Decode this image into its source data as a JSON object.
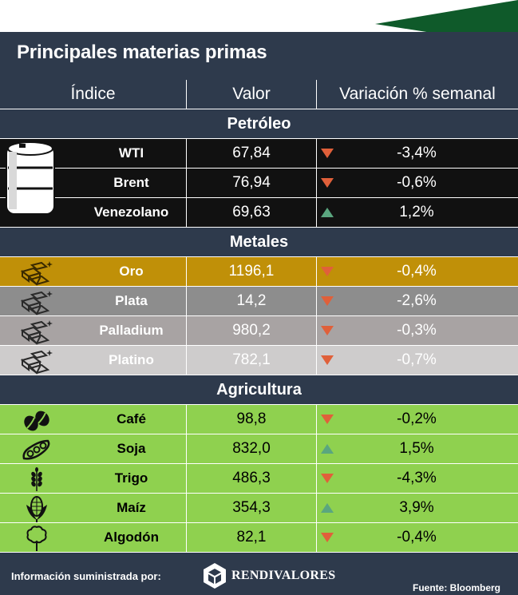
{
  "title": "Principales materias primas",
  "headers": {
    "col1": "Índice",
    "col2": "Valor",
    "col3": "Variación % semanal"
  },
  "sections": {
    "petroleo": "Petróleo",
    "metales": "Metales",
    "agricultura": "Agricultura"
  },
  "petroleo_rows": [
    {
      "name": "WTI",
      "value": "67,84",
      "change": "-3,4%",
      "direction": "down"
    },
    {
      "name": "Brent",
      "value": "76,94",
      "change": "-0,6%",
      "direction": "down"
    },
    {
      "name": "Venezolano",
      "value": "69,63",
      "change": "1,2%",
      "direction": "up"
    }
  ],
  "metales_rows": [
    {
      "name": "Oro",
      "value": "1196,1",
      "change": "-0,4%",
      "direction": "down",
      "icon": "gold-bars-icon"
    },
    {
      "name": "Plata",
      "value": "14,2",
      "change": "-2,6%",
      "direction": "down",
      "icon": "silver-bars-icon"
    },
    {
      "name": "Palladium",
      "value": "980,2",
      "change": "-0,3%",
      "direction": "down",
      "icon": "palladium-bars-icon"
    },
    {
      "name": "Platino",
      "value": "782,1",
      "change": "-0,7%",
      "direction": "down",
      "icon": "platinum-bars-icon"
    }
  ],
  "agricultura_rows": [
    {
      "name": "Café",
      "value": "98,8",
      "change": "-0,2%",
      "direction": "down",
      "icon": "coffee-beans-icon"
    },
    {
      "name": "Soja",
      "value": "832,0",
      "change": "1,5%",
      "direction": "up",
      "icon": "soybean-pod-icon"
    },
    {
      "name": "Trigo",
      "value": "486,3",
      "change": "-4,3%",
      "direction": "down",
      "icon": "wheat-icon"
    },
    {
      "name": "Maíz",
      "value": "354,3",
      "change": "3,9%",
      "direction": "up",
      "icon": "corn-icon"
    },
    {
      "name": "Algodón",
      "value": "82,1",
      "change": "-0,4%",
      "direction": "down",
      "icon": "cotton-icon"
    }
  ],
  "footer": {
    "provided_by": "Información suministrada por:",
    "logo_text": "RENDIVALORES",
    "source": "Fuente: Bloomberg"
  },
  "colors": {
    "navy": "#2e3a4c",
    "oil_row": "#111111",
    "gold_row": "#c09008",
    "silver_row": "#8d8d8d",
    "palladium_row": "#a8a3a3",
    "platinum_row": "#cecccc",
    "agri_row": "#8fd14f",
    "down_arrow": "#e0603a",
    "up_arrow": "#5aa67f",
    "banner_green": "#0f5a2a"
  }
}
